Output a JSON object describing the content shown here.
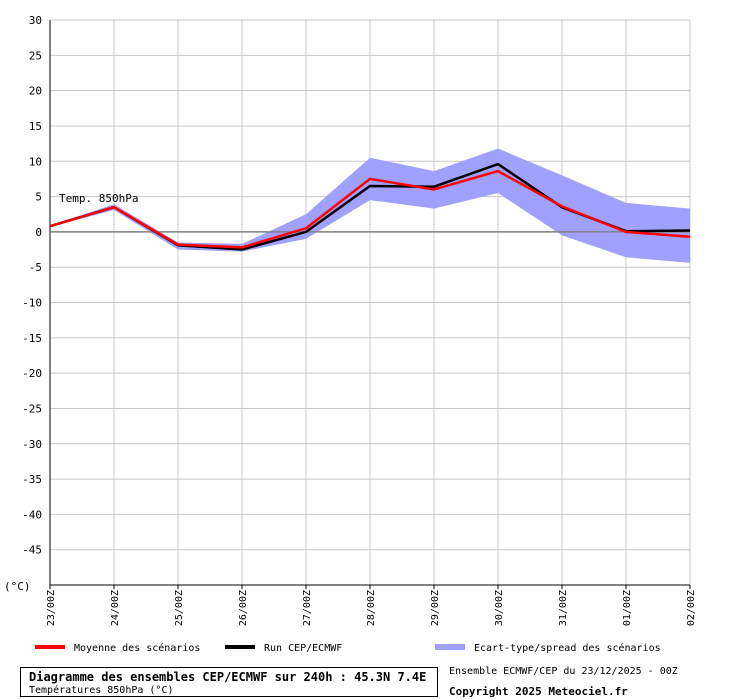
{
  "chart_data": {
    "type": "line",
    "unit_label": "(°C)",
    "series_label": "Temp. 850hPa",
    "x_ticks": [
      "23/00Z",
      "24/00Z",
      "25/00Z",
      "26/00Z",
      "27/00Z",
      "28/00Z",
      "29/00Z",
      "30/00Z",
      "31/00Z",
      "01/00Z",
      "02/00Z"
    ],
    "x": [
      0,
      1,
      2,
      3,
      4,
      5,
      6,
      7,
      8,
      9,
      10
    ],
    "y_ticks": [
      30,
      25,
      20,
      15,
      10,
      5,
      0,
      -5,
      -10,
      -15,
      -20,
      -25,
      -30,
      -35,
      -40,
      -45
    ],
    "ylim": [
      -50,
      30
    ],
    "grid": true,
    "series": [
      {
        "name": "Moyenne des scénarios",
        "color": "#ff0000",
        "values": [
          0.8,
          3.5,
          -1.8,
          -2.2,
          0.5,
          7.5,
          6.0,
          8.6,
          3.6,
          0.0,
          -0.7
        ]
      },
      {
        "name": "Run CEP/ECMWF",
        "color": "#000000",
        "values": [
          0.8,
          3.5,
          -1.9,
          -2.5,
          0.0,
          6.5,
          6.4,
          9.6,
          3.5,
          0.1,
          0.2
        ]
      }
    ],
    "spread": {
      "name": "Ecart-type/spread des scénarios",
      "color": "#a0a0ff",
      "upper": [
        0.9,
        3.9,
        -1.5,
        -1.7,
        2.5,
        10.5,
        8.6,
        11.8,
        8.0,
        4.1,
        3.3
      ],
      "lower": [
        0.7,
        3.1,
        -2.5,
        -2.8,
        -1.0,
        4.5,
        3.3,
        5.5,
        -0.5,
        -3.6,
        -4.4
      ]
    }
  },
  "footer": {
    "title": "Diagramme des ensembles CEP/ECMWF sur 240h : 45.3N 7.4E",
    "subtitle": "Températures 850hPa (°C)",
    "run_info": "Ensemble ECMWF/CEP du 23/12/2025 - 00Z",
    "copyright": "Copyright 2025 Meteociel.fr"
  }
}
